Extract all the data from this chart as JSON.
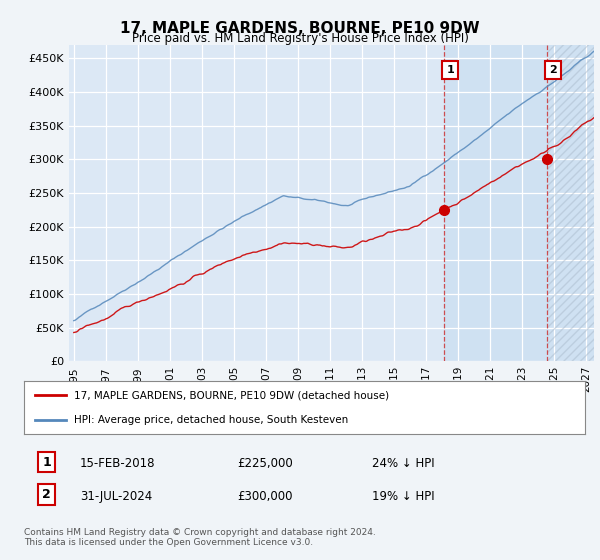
{
  "title": "17, MAPLE GARDENS, BOURNE, PE10 9DW",
  "subtitle": "Price paid vs. HM Land Registry's House Price Index (HPI)",
  "legend_label_red": "17, MAPLE GARDENS, BOURNE, PE10 9DW (detached house)",
  "legend_label_blue": "HPI: Average price, detached house, South Kesteven",
  "annotation1_date": "15-FEB-2018",
  "annotation1_price": "£225,000",
  "annotation1_pct": "24% ↓ HPI",
  "annotation2_date": "31-JUL-2024",
  "annotation2_price": "£300,000",
  "annotation2_pct": "19% ↓ HPI",
  "footer": "Contains HM Land Registry data © Crown copyright and database right 2024.\nThis data is licensed under the Open Government Licence v3.0.",
  "bg_color": "#dce8f5",
  "plot_bg_color": "#dce8f5",
  "outer_bg": "#f0f4f8",
  "red_color": "#cc0000",
  "blue_color": "#5588bb",
  "grid_color": "#ffffff",
  "shade_color": "#ccddf0",
  "hatch_bg": "#ddeeff",
  "ylim": [
    0,
    470000
  ],
  "yticks": [
    0,
    50000,
    100000,
    150000,
    200000,
    250000,
    300000,
    350000,
    400000,
    450000
  ],
  "t_v1": 2018.12,
  "t_v2": 2024.54,
  "years_start": 1995.0,
  "years_end": 2027.5,
  "xlim_left": 1994.7,
  "xlim_right": 2027.5
}
